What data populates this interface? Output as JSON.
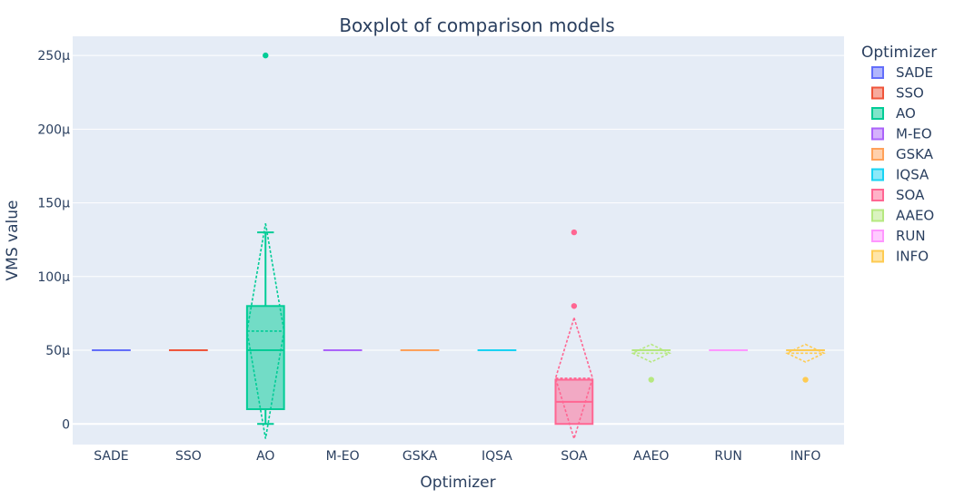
{
  "chart_data": {
    "type": "box",
    "title": "Boxplot of comparison models",
    "xlabel": "Optimizer",
    "ylabel": "VMS value",
    "ylim": [
      -14,
      263
    ],
    "y_ticks": [
      {
        "value": 0,
        "label": "0"
      },
      {
        "value": 50,
        "label": "50μ"
      },
      {
        "value": 100,
        "label": "100μ"
      },
      {
        "value": 150,
        "label": "150μ"
      },
      {
        "value": 200,
        "label": "200μ"
      },
      {
        "value": 250,
        "label": "250μ"
      }
    ],
    "grid": true,
    "legend": {
      "title": "Optimizer",
      "placement": "right"
    },
    "series": [
      {
        "name": "SADE",
        "color": "#636efa",
        "q1": 50,
        "median": 50,
        "q3": 50,
        "lower_fence": 50,
        "upper_fence": 50,
        "outliers": []
      },
      {
        "name": "SSO",
        "color": "#ef553b",
        "q1": 50,
        "median": 50,
        "q3": 50,
        "lower_fence": 50,
        "upper_fence": 50,
        "outliers": []
      },
      {
        "name": "AO",
        "color": "#00cc96",
        "q1": 10,
        "median": 50,
        "q3": 80,
        "lower_fence": 0,
        "upper_fence": 130,
        "outliers": [
          250
        ],
        "mean": 63,
        "sd": 73
      },
      {
        "name": "M-EO",
        "color": "#ab63fa",
        "q1": 50,
        "median": 50,
        "q3": 50,
        "lower_fence": 50,
        "upper_fence": 50,
        "outliers": []
      },
      {
        "name": "GSKA",
        "color": "#ffa15a",
        "q1": 50,
        "median": 50,
        "q3": 50,
        "lower_fence": 50,
        "upper_fence": 50,
        "outliers": []
      },
      {
        "name": "IQSA",
        "color": "#19d3f3",
        "q1": 50,
        "median": 50,
        "q3": 50,
        "lower_fence": 50,
        "upper_fence": 50,
        "outliers": []
      },
      {
        "name": "SOA",
        "color": "#ff6692",
        "q1": 0,
        "median": 15,
        "q3": 30,
        "lower_fence": 0,
        "upper_fence": 30,
        "outliers": [
          80,
          130
        ],
        "mean": 31,
        "sd": 41
      },
      {
        "name": "AAEO",
        "color": "#b6e880",
        "q1": 50,
        "median": 50,
        "q3": 50,
        "lower_fence": 50,
        "upper_fence": 50,
        "outliers": [
          30
        ],
        "mean": 48,
        "sd": 6
      },
      {
        "name": "RUN",
        "color": "#ff97ff",
        "q1": 50,
        "median": 50,
        "q3": 50,
        "lower_fence": 50,
        "upper_fence": 50,
        "outliers": []
      },
      {
        "name": "INFO",
        "color": "#fecb52",
        "q1": 50,
        "median": 50,
        "q3": 50,
        "lower_fence": 50,
        "upper_fence": 50,
        "outliers": [
          30
        ],
        "mean": 48,
        "sd": 6
      }
    ]
  }
}
